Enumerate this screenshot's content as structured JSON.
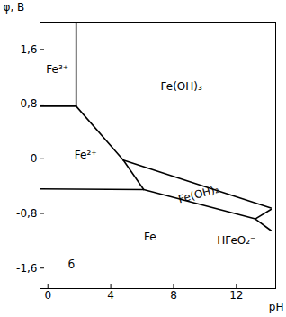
{
  "chart_data": {
    "type": "line",
    "xlabel": "pH",
    "ylabel": "φ, В",
    "xlim": [
      -0.5,
      14.5
    ],
    "ylim": [
      -1.9,
      2.0
    ],
    "xticks": [
      0,
      4,
      8,
      12
    ],
    "yticks": [
      {
        "value": 1.6,
        "label": "1,6"
      },
      {
        "value": 0.8,
        "label": "0,8"
      },
      0,
      {
        "value": -0.8,
        "label": "-0,8"
      },
      {
        "value": -1.6,
        "label": "-1,6"
      }
    ],
    "color": "#000000",
    "series": [
      {
        "x": [
          -0.5,
          1.8
        ],
        "values": [
          0.77,
          0.77
        ]
      },
      {
        "x": [
          1.8,
          1.8
        ],
        "values": [
          0.77,
          2.0
        ]
      },
      {
        "x": [
          1.8,
          4.8
        ],
        "values": [
          0.77,
          -0.02
        ]
      },
      {
        "x": [
          4.8,
          6.1
        ],
        "values": [
          -0.02,
          -0.45
        ]
      },
      {
        "x": [
          4.8,
          14.2
        ],
        "values": [
          -0.02,
          -0.72
        ]
      },
      {
        "x": [
          -0.5,
          6.1
        ],
        "values": [
          -0.44,
          -0.45
        ]
      },
      {
        "x": [
          6.1,
          13.2
        ],
        "values": [
          -0.45,
          -0.88
        ]
      },
      {
        "x": [
          13.2,
          14.2
        ],
        "values": [
          -0.88,
          -1.05
        ]
      },
      {
        "x": [
          13.2,
          14.2
        ],
        "values": [
          -0.88,
          -0.74
        ]
      }
    ],
    "annotations": [
      {
        "text": "Fe³⁺",
        "x": 0.6,
        "y": 1.3
      },
      {
        "text": "Fe(OH)₃",
        "x": 8.5,
        "y": 1.05
      },
      {
        "text": "Fe²⁺",
        "x": 2.4,
        "y": 0.05
      },
      {
        "text": "Fe(OH)₂",
        "x": 9.6,
        "y": -0.52
      },
      {
        "text": "Fe",
        "x": 6.5,
        "y": -1.15
      },
      {
        "text": "HFeO₂⁻",
        "x": 12.0,
        "y": -1.2
      },
      {
        "text": "б",
        "x": 1.5,
        "y": -1.55
      }
    ]
  }
}
